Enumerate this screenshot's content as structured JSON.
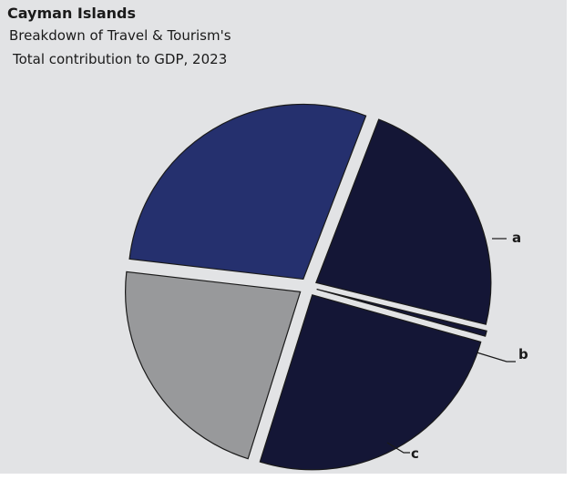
{
  "chart_data": {
    "type": "pie",
    "title": "Cayman Islands",
    "subtitle": [
      "Breakdown of Travel & Tourism's",
      "Total contribution to GDP, 2023"
    ],
    "slices": [
      {
        "label": "a",
        "value": 23.0,
        "color": "#141636"
      },
      {
        "label": "b",
        "value": 0.5,
        "color": "#141636"
      },
      {
        "label": "c",
        "value": 25.5,
        "color": "#141636"
      },
      {
        "label": "",
        "value": 22.0,
        "color": "#98999b"
      },
      {
        "label": "",
        "value": 29.0,
        "color": "#25306e"
      }
    ],
    "legend": "none"
  }
}
